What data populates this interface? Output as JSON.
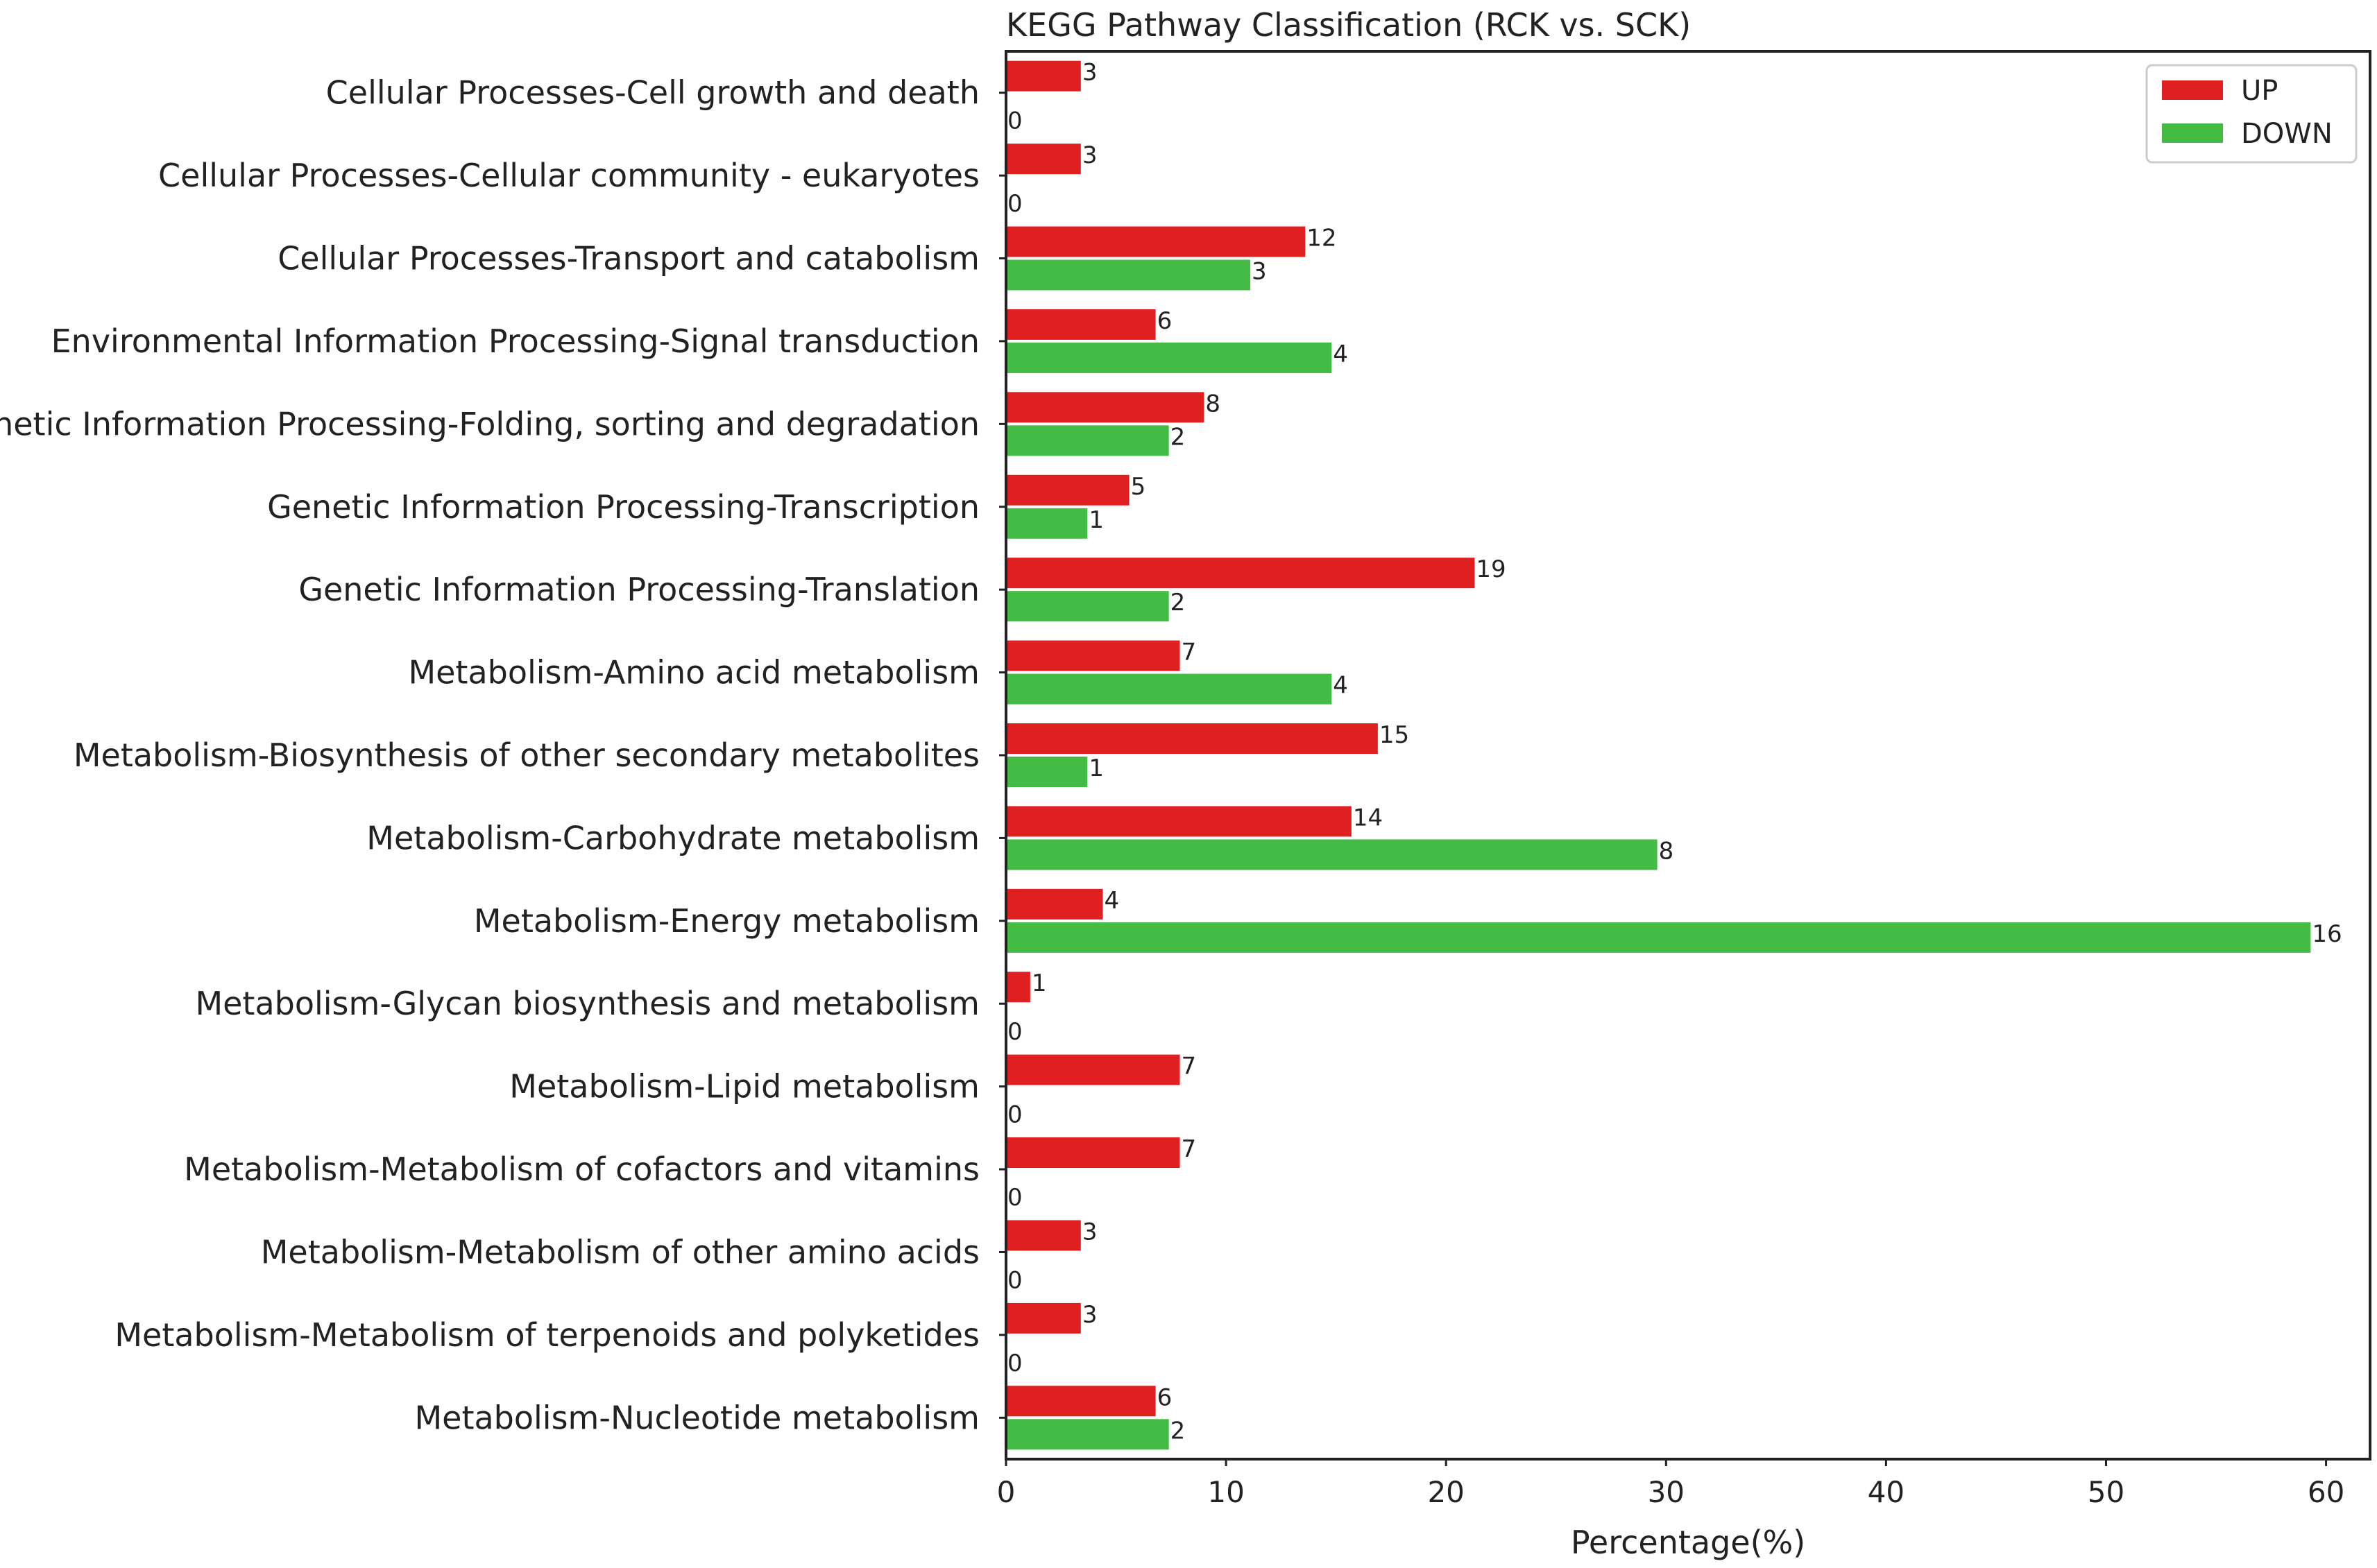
{
  "chart_data": {
    "type": "bar",
    "orientation": "horizontal",
    "title": "KEGG Pathway Classification (RCK  vs.  SCK)",
    "xlabel": "Percentage(%)",
    "ylabel": "",
    "xlim": [
      0,
      62
    ],
    "xticks": [
      0,
      10,
      20,
      30,
      40,
      50,
      60
    ],
    "grid": false,
    "legend_position": "top-right",
    "categories": [
      "Cellular Processes-Cell growth and death",
      "Cellular Processes-Cellular community - eukaryotes",
      "Cellular Processes-Transport and catabolism",
      "Environmental Information Processing-Signal transduction",
      "Genetic Information Processing-Folding, sorting and degradation",
      "Genetic Information Processing-Transcription",
      "Genetic Information Processing-Translation",
      "Metabolism-Amino acid metabolism",
      "Metabolism-Biosynthesis of other secondary metabolites",
      "Metabolism-Carbohydrate metabolism",
      "Metabolism-Energy metabolism",
      "Metabolism-Glycan biosynthesis and metabolism",
      "Metabolism-Lipid metabolism",
      "Metabolism-Metabolism of cofactors and vitamins",
      "Metabolism-Metabolism of other amino acids",
      "Metabolism-Metabolism of terpenoids and polyketides",
      "Metabolism-Nucleotide metabolism"
    ],
    "series": [
      {
        "name": "UP",
        "color": "#e02020",
        "values": [
          3.4,
          3.4,
          13.6,
          6.8,
          9.0,
          5.6,
          21.3,
          7.9,
          16.9,
          15.7,
          4.4,
          1.1,
          7.9,
          7.9,
          3.4,
          3.4,
          6.8
        ],
        "labels": [
          "3",
          "3",
          "12",
          "6",
          "8",
          "5",
          "19",
          "7",
          "15",
          "14",
          "4",
          "1",
          "7",
          "7",
          "3",
          "3",
          "6"
        ]
      },
      {
        "name": "DOWN",
        "color": "#44bb44",
        "values": [
          0,
          0,
          11.1,
          14.8,
          7.4,
          3.7,
          7.4,
          14.8,
          3.7,
          29.6,
          59.3,
          0,
          0,
          0,
          0,
          0,
          7.4
        ],
        "labels": [
          "0",
          "0",
          "3",
          "4",
          "2",
          "1",
          "2",
          "4",
          "1",
          "8",
          "16",
          "0",
          "0",
          "0",
          "0",
          "0",
          "2"
        ]
      }
    ]
  }
}
